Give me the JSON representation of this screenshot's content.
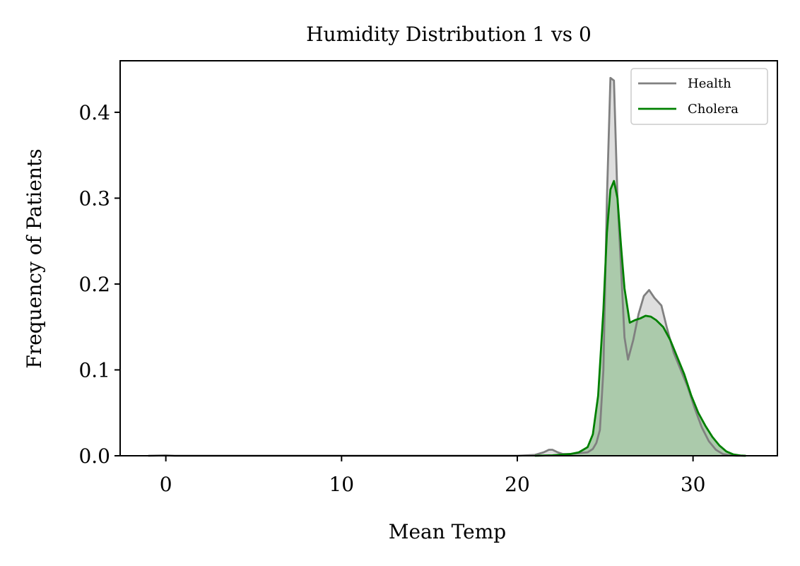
{
  "chart_data": {
    "type": "area",
    "title": "Humidity Distribution 1 vs 0",
    "xlabel": "Mean Temp",
    "ylabel": "Frequency of Patients",
    "xlim": [
      -2.6,
      34.8
    ],
    "ylim": [
      0,
      0.46
    ],
    "xticks": [
      0,
      10,
      20,
      30
    ],
    "xtick_labels": [
      "0",
      "10",
      "20",
      "30"
    ],
    "yticks": [
      0.0,
      0.1,
      0.2,
      0.3,
      0.4
    ],
    "ytick_labels": [
      "0.0",
      "0.1",
      "0.2",
      "0.3",
      "0.4"
    ],
    "grid": false,
    "legend_position": "top-right",
    "series": [
      {
        "name": "Health",
        "color": "#808080",
        "fill": "#d3d3d3",
        "x": [
          -1.0,
          0.0,
          0.5,
          20.0,
          21.0,
          21.5,
          21.8,
          22.0,
          22.3,
          22.6,
          23.0,
          23.5,
          24.0,
          24.3,
          24.5,
          24.7,
          24.9,
          25.1,
          25.3,
          25.5,
          25.7,
          25.9,
          26.1,
          26.3,
          26.6,
          26.9,
          27.2,
          27.5,
          27.8,
          28.2,
          28.5,
          28.9,
          29.3,
          29.7,
          30.1,
          30.5,
          30.9,
          31.3,
          31.7,
          32.1,
          32.5,
          33.0
        ],
        "y": [
          0.0,
          0.0005,
          0.0,
          0.0,
          0.001,
          0.004,
          0.007,
          0.007,
          0.004,
          0.002,
          0.002,
          0.003,
          0.004,
          0.008,
          0.015,
          0.03,
          0.1,
          0.3,
          0.44,
          0.437,
          0.3,
          0.22,
          0.138,
          0.112,
          0.135,
          0.165,
          0.186,
          0.193,
          0.184,
          0.175,
          0.15,
          0.12,
          0.1,
          0.08,
          0.055,
          0.033,
          0.017,
          0.007,
          0.002,
          0.0005,
          0.0,
          0.0
        ]
      },
      {
        "name": "Cholera",
        "color": "#008000",
        "fill": "#a8c8a8",
        "x": [
          21.0,
          22.0,
          23.0,
          23.5,
          24.0,
          24.3,
          24.6,
          24.9,
          25.1,
          25.3,
          25.5,
          25.7,
          25.9,
          26.1,
          26.4,
          26.7,
          27.0,
          27.3,
          27.6,
          27.9,
          28.3,
          28.7,
          29.1,
          29.5,
          29.9,
          30.3,
          30.7,
          31.1,
          31.5,
          31.9,
          32.3,
          32.7,
          33.0
        ],
        "y": [
          0.0,
          0.0005,
          0.002,
          0.004,
          0.01,
          0.025,
          0.07,
          0.17,
          0.26,
          0.31,
          0.32,
          0.3,
          0.245,
          0.195,
          0.155,
          0.158,
          0.16,
          0.163,
          0.162,
          0.158,
          0.15,
          0.135,
          0.115,
          0.095,
          0.07,
          0.05,
          0.035,
          0.022,
          0.012,
          0.005,
          0.0015,
          0.0003,
          0.0
        ]
      }
    ]
  }
}
